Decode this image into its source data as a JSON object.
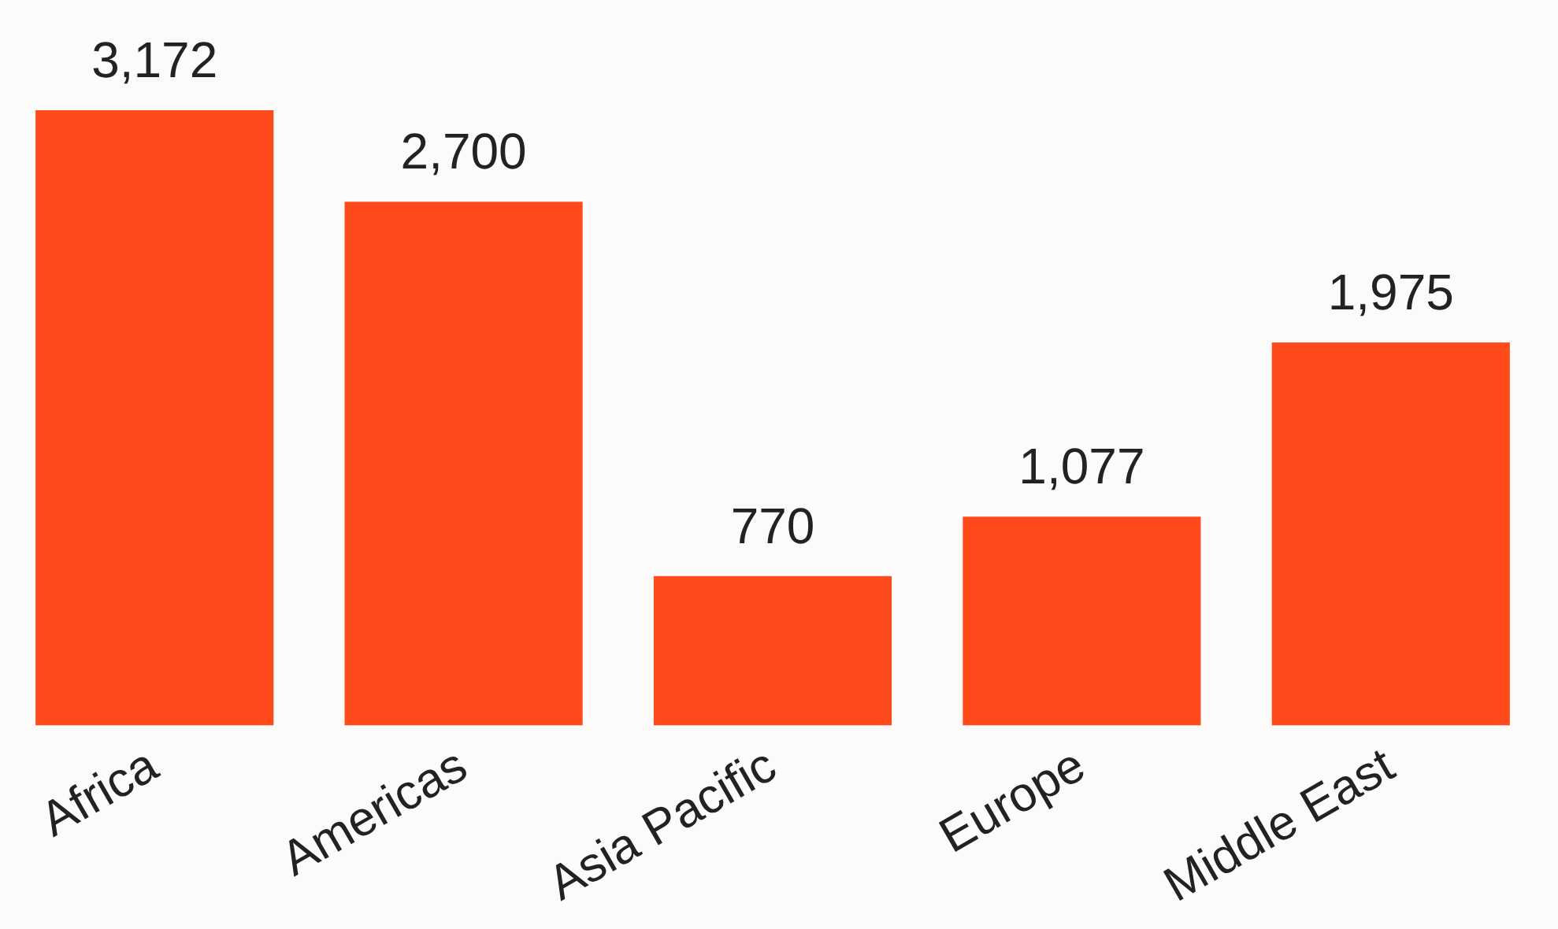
{
  "chart_data": {
    "type": "bar",
    "categories": [
      "Africa",
      "Americas",
      "Asia Pacific",
      "Europe",
      "Middle East"
    ],
    "values": [
      3172,
      2700,
      770,
      1077,
      1975
    ],
    "value_labels": [
      "3,172",
      "2,700",
      "770",
      "1,077",
      "1,975"
    ],
    "color": "#ff4a1c",
    "grid": false,
    "legend": false
  }
}
